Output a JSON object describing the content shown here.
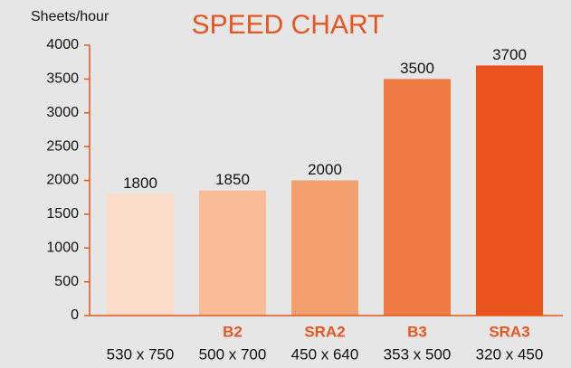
{
  "chart_data": {
    "type": "bar",
    "title": "SPEED CHART",
    "y_label": "Sheets/hour",
    "categories": [
      "530 x 750",
      "500 x 700",
      "450 x 640",
      "353 x 500",
      "320 x 450"
    ],
    "paper_sizes": [
      null,
      "B2",
      "SRA2",
      "B3",
      "SRA3"
    ],
    "values": [
      1800,
      1850,
      2000,
      3500,
      3700
    ],
    "colors": [
      "#fadcc9",
      "#f8bd98",
      "#f3a06e",
      "#ef7a43",
      "#e9541f"
    ],
    "axis_color": "#e9541f",
    "ylim": [
      0,
      4000
    ],
    "yticks": [
      0,
      500,
      1000,
      1500,
      2000,
      2500,
      3000,
      3500,
      4000
    ],
    "grid": false
  }
}
